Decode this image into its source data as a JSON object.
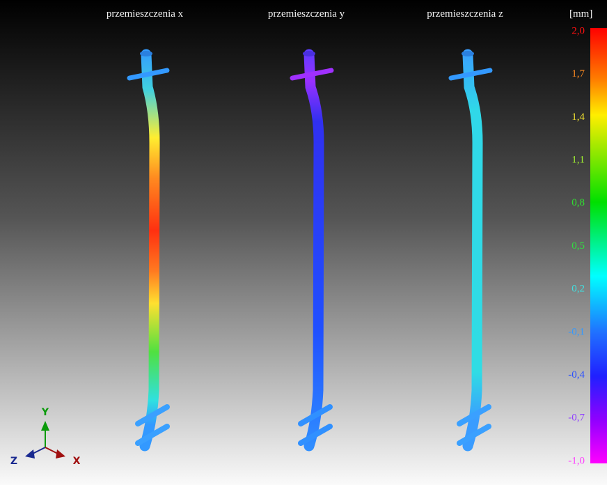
{
  "titles": [
    "przemieszczenia x",
    "przemieszczenia y",
    "przemieszczenia z"
  ],
  "unit": "[mm]",
  "scale": {
    "labels": [
      "2,0",
      "1,7",
      "1,4",
      "1,1",
      "0,8",
      "0,5",
      "0,2",
      "-0,1",
      "-0,4",
      "-0,7",
      "-1,0"
    ]
  },
  "axes": {
    "x": "X",
    "y": "Y",
    "z": "Z"
  }
}
